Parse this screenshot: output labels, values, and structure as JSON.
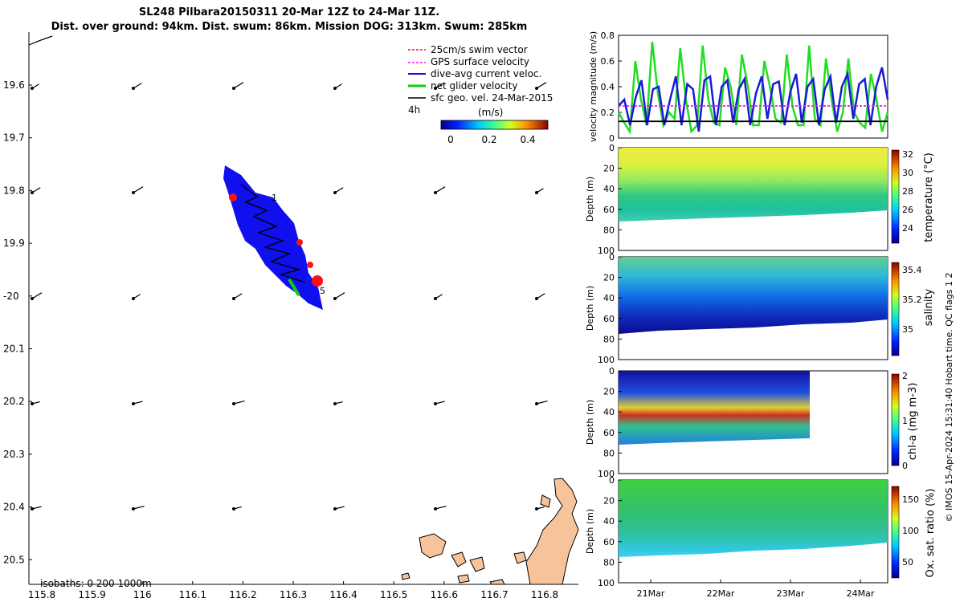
{
  "header": {
    "line1": "SL248 Pilbara20150311 20-Mar 12Z to 24-Mar 11Z.",
    "line2": "Dist. over ground: 94km. Dist. swum: 86km. Mission DOG: 313km. Swum: 285km"
  },
  "map": {
    "lat_ticks": [
      "19.6",
      "19.7",
      "19.8",
      "19.9",
      "-20",
      "20.1",
      "20.2",
      "20.3",
      "20.4",
      "20.5"
    ],
    "lon_ticks": [
      "115.8",
      "115.9",
      "116",
      "116.1",
      "116.2",
      "116.3",
      "116.4",
      "116.5",
      "116.6",
      "116.7",
      "116.8"
    ],
    "legend": [
      {
        "label": "25cm/s swim vector",
        "color": "#e02020"
      },
      {
        "label": "GPS surface velocity",
        "color": "#e020e0"
      },
      {
        "label": "dive-avg current veloc.",
        "color": "#1010d0"
      },
      {
        "label": "net glider velocity",
        "color": "#10d010"
      },
      {
        "label": "sfc geo. vel. 24-Mar-2015",
        "color": "#000000"
      }
    ],
    "legend_note": "4h",
    "colorbar_title": "(m/s)",
    "colorbar_ticks": [
      "0",
      "0.2",
      "0.4"
    ],
    "isobaths_label": "isobaths: 0   200  1000m",
    "track_marks": [
      "1",
      "5"
    ],
    "geo_vectors_description_colors": {
      "arrow": "#000000",
      "land": "#f6c39a"
    }
  },
  "panels": {
    "time_ticks": [
      "21Mar",
      "22Mar",
      "23Mar",
      "24Mar"
    ],
    "depth_ticks": [
      "0",
      "20",
      "40",
      "60",
      "80",
      "100"
    ],
    "depth_label": "Depth (m)",
    "velocity": {
      "ylabel": "velocity magnitude (m/s)",
      "yticks": [
        "0",
        "0.2",
        "0.4",
        "0.6",
        "0.8"
      ]
    },
    "temperature": {
      "label": "temperature (°C)",
      "ticks": [
        "32",
        "30",
        "28",
        "26",
        "24"
      ]
    },
    "salinity": {
      "label": "salinity",
      "ticks": [
        "35.4",
        "35.2",
        "35"
      ]
    },
    "chla": {
      "label": "chl-a (mg m-3)",
      "ticks": [
        "2",
        "1",
        "0"
      ]
    },
    "oxygen": {
      "label": "Ox. sat. ratio (%)",
      "ticks": [
        "150",
        "100",
        "50"
      ]
    },
    "footer": "© IMOS 15-Apr-2024 15:31:40 Hobart time. QC flags 1  2"
  },
  "chart_data": [
    {
      "type": "line",
      "title": "",
      "ylabel": "velocity magnitude (m/s)",
      "ylim": [
        0,
        0.8
      ],
      "x_labels": [
        "21Mar",
        "22Mar",
        "23Mar",
        "24Mar"
      ],
      "series": [
        {
          "name": "net glider velocity",
          "color": "#22dd22",
          "values": [
            0.2,
            0.12,
            0.05,
            0.6,
            0.3,
            0.1,
            0.75,
            0.35,
            0.1,
            0.2,
            0.15,
            0.7,
            0.3,
            0.05,
            0.1,
            0.72,
            0.3,
            0.12,
            0.1,
            0.55,
            0.4,
            0.1,
            0.65,
            0.42,
            0.1,
            0.1,
            0.6,
            0.4,
            0.15,
            0.12,
            0.65,
            0.25,
            0.1,
            0.1,
            0.72,
            0.15,
            0.1,
            0.62,
            0.3,
            0.05,
            0.2,
            0.62,
            0.2,
            0.12,
            0.08,
            0.5,
            0.3,
            0.05,
            0.2
          ]
        },
        {
          "name": "dive-avg current veloc.",
          "color": "#1a1ad8",
          "values": [
            0.25,
            0.3,
            0.1,
            0.32,
            0.45,
            0.1,
            0.38,
            0.4,
            0.1,
            0.3,
            0.48,
            0.1,
            0.42,
            0.38,
            0.05,
            0.45,
            0.48,
            0.1,
            0.4,
            0.45,
            0.12,
            0.38,
            0.46,
            0.1,
            0.35,
            0.48,
            0.15,
            0.42,
            0.44,
            0.1,
            0.36,
            0.5,
            0.12,
            0.4,
            0.46,
            0.1,
            0.38,
            0.48,
            0.12,
            0.4,
            0.5,
            0.15,
            0.42,
            0.46,
            0.1,
            0.4,
            0.55,
            0.3
          ]
        },
        {
          "name": "GPS surface velocity",
          "color": "#dd22dd",
          "values": [
            0.25,
            0.25
          ]
        },
        {
          "name": "sfc geo. vel. 24-Mar-2015",
          "color": "#000000",
          "values": [
            0.13,
            0.13
          ]
        }
      ]
    },
    {
      "type": "heatmap",
      "ylabel": "Depth (m)",
      "ylim": [
        100,
        0
      ],
      "colorbar_label": "temperature (°C)",
      "colorbar_ticks": [
        32,
        30,
        28,
        26,
        24
      ]
    },
    {
      "type": "heatmap",
      "ylabel": "Depth (m)",
      "ylim": [
        100,
        0
      ],
      "colorbar_label": "salinity",
      "colorbar_ticks": [
        35.4,
        35.2,
        35
      ]
    },
    {
      "type": "heatmap",
      "ylabel": "Depth (m)",
      "ylim": [
        100,
        0
      ],
      "colorbar_label": "chl-a (mg m-3)",
      "colorbar_ticks": [
        2,
        1,
        0
      ]
    },
    {
      "type": "heatmap",
      "ylabel": "Depth (m)",
      "ylim": [
        100,
        0
      ],
      "colorbar_label": "Ox. sat. ratio (%)",
      "colorbar_ticks": [
        150,
        100,
        50
      ]
    }
  ]
}
